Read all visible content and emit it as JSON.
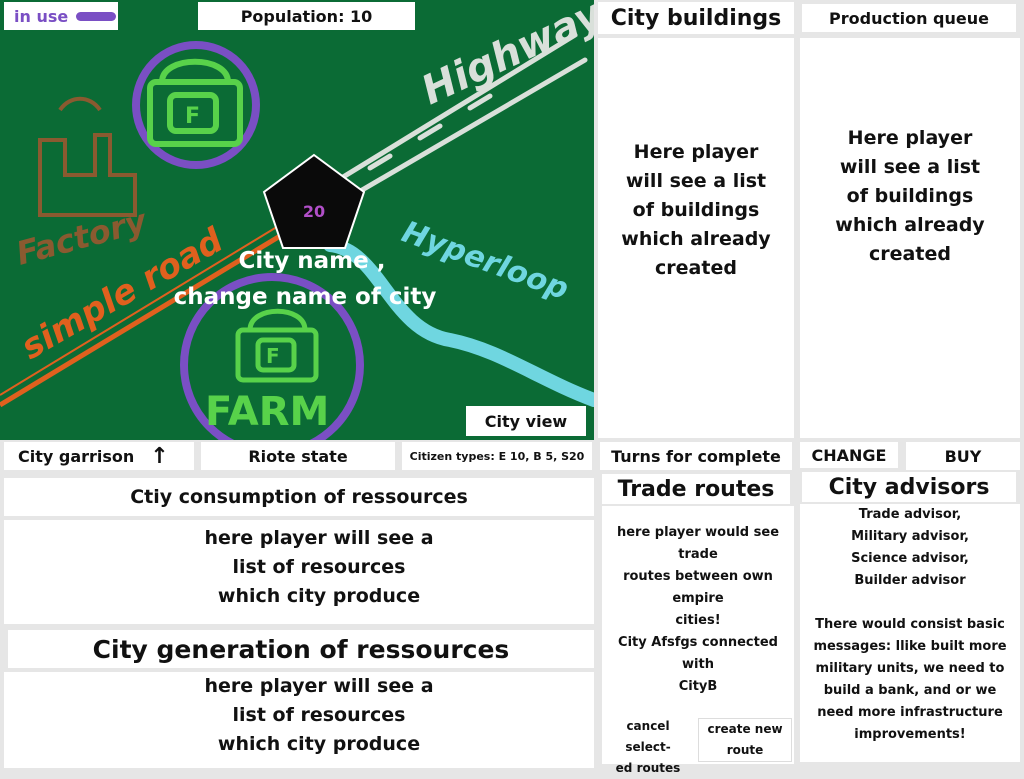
{
  "map": {
    "in_use_label": "in use",
    "population_label": "Population: 10",
    "city_level": "20",
    "city_name_line1": "City name ,",
    "city_name_line2": "change name of city",
    "labels": {
      "highway": "Highway",
      "hyperloop": "Hyperloop",
      "simple_road": "simple road",
      "factory": "Factory",
      "farm": "FARM",
      "f_glyph": "F"
    },
    "city_view_button": "City view"
  },
  "info_bar": {
    "garrison": "City garrison",
    "arrow_icon": "up-arrow",
    "riot_state": "Riote state",
    "citizen_types": "Citizen types: E 10, B 5, S20"
  },
  "consumption": {
    "title": "Ctiy consumption of ressources",
    "line1": "here player will see a",
    "line2": "list of resources",
    "line3": "which city produce"
  },
  "generation": {
    "title": "City generation of ressources",
    "line1": "here player will see a",
    "line2": "list of resources",
    "line3": "which city produce"
  },
  "city_buildings": {
    "title": "City buildings",
    "line1": "Here player",
    "line2": "will see a list",
    "line3": "of buildings",
    "line4": "which already",
    "line5": "created"
  },
  "production_queue": {
    "title": "Production queue",
    "line1": "Here player",
    "line2": "will see a list",
    "line3": "of buildings",
    "line4": "which already",
    "line5": "created"
  },
  "production_controls": {
    "turns_label": "Turns for complete",
    "change_button": "CHANGE",
    "buy_button": "BUY"
  },
  "trade_routes": {
    "title": "Trade routes",
    "line1": "here player would see trade",
    "line2": "routes between own empire",
    "line3": "cities!",
    "line4": "City Afsfgs connected with",
    "line5": "CityB",
    "cancel_line1": "cancel select-",
    "cancel_line2": "ed routes",
    "create_line1": "create new",
    "create_line2": "route"
  },
  "advisors": {
    "title": "City advisors",
    "list1": "Trade advisor,",
    "list2": "Military advisor,",
    "list3": "Science advisor,",
    "list4": "Builder advisor",
    "msg1": "There would consist basic",
    "msg2": "messages: llike built more",
    "msg3": "military units, we need to",
    "msg4": "build a bank, and or we",
    "msg5": "need more infrastructure",
    "msg6": "improvements!"
  },
  "colors": {
    "map_green": "#0b6b35",
    "purple": "#7a4fc4",
    "light_green": "#58d24a",
    "orange": "#e0601e",
    "highway_grey": "#d9e0da",
    "hyperloop_cyan": "#6fd6e0",
    "level_text": "#b14fc8"
  }
}
